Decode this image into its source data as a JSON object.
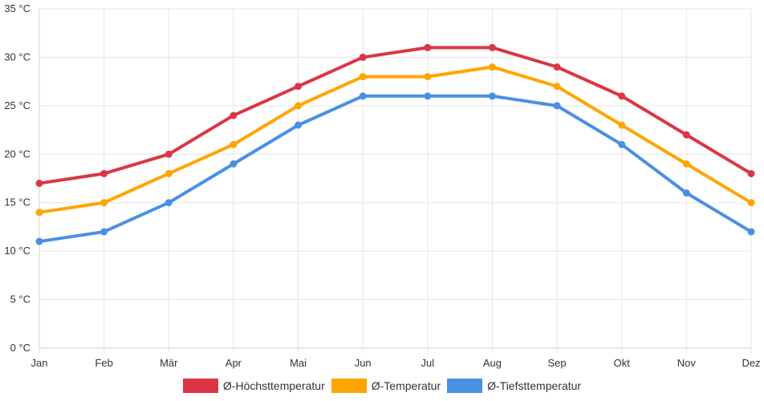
{
  "chart_data": {
    "type": "line",
    "title": "",
    "xlabel": "",
    "ylabel": "",
    "categories": [
      "Jan",
      "Feb",
      "Mär",
      "Apr",
      "Mai",
      "Jun",
      "Jul",
      "Aug",
      "Sep",
      "Okt",
      "Nov",
      "Dez"
    ],
    "ylim": [
      0,
      35
    ],
    "y_ticks": [
      0,
      5,
      10,
      15,
      20,
      25,
      30,
      35
    ],
    "y_tick_suffix": " °C",
    "grid": true,
    "legend_position": "bottom-center",
    "series": [
      {
        "name": "Ø-Höchsttemperatur",
        "color": "#dc3545",
        "values": [
          17,
          18,
          20,
          24,
          27,
          30,
          31,
          31,
          29,
          26,
          22,
          18
        ]
      },
      {
        "name": "Ø-Temperatur",
        "color": "#ffa500",
        "values": [
          14,
          15,
          18,
          21,
          25,
          28,
          28,
          29,
          27,
          23,
          19,
          15
        ]
      },
      {
        "name": "Ø-Tiefsttemperatur",
        "color": "#4a90e2",
        "values": [
          11,
          12,
          15,
          19,
          23,
          26,
          26,
          26,
          25,
          21,
          16,
          12
        ]
      }
    ]
  }
}
